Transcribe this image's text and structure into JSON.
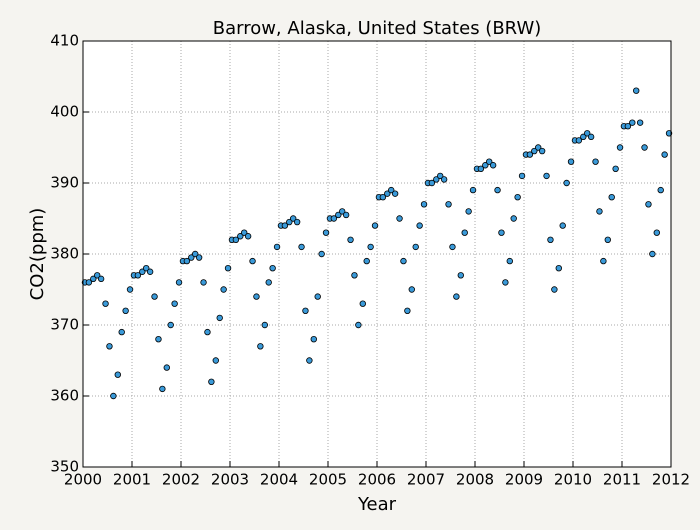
{
  "chart_data": {
    "type": "scatter",
    "title": "Barrow, Alaska, United States (BRW)",
    "x_label": "Year",
    "y_label": "CO2(ppm)",
    "xlim": [
      2000,
      2012
    ],
    "xticks": [
      2000,
      2001,
      2002,
      2003,
      2004,
      2005,
      2006,
      2007,
      2008,
      2009,
      2010,
      2011,
      2012
    ],
    "ylim": [
      350,
      410
    ],
    "yticks": [
      350,
      360,
      370,
      380,
      390,
      400,
      410
    ],
    "grid": true,
    "color": "#3a9ad9",
    "x": [
      2000.04,
      2000.12,
      2000.21,
      2000.29,
      2000.37,
      2000.46,
      2000.54,
      2000.62,
      2000.71,
      2000.79,
      2000.87,
      2000.96,
      2001.04,
      2001.12,
      2001.21,
      2001.29,
      2001.37,
      2001.46,
      2001.54,
      2001.62,
      2001.71,
      2001.79,
      2001.87,
      2001.96,
      2002.04,
      2002.12,
      2002.21,
      2002.29,
      2002.37,
      2002.46,
      2002.54,
      2002.62,
      2002.71,
      2002.79,
      2002.87,
      2002.96,
      2003.04,
      2003.12,
      2003.21,
      2003.29,
      2003.37,
      2003.46,
      2003.54,
      2003.62,
      2003.71,
      2003.79,
      2003.87,
      2003.96,
      2004.04,
      2004.12,
      2004.21,
      2004.29,
      2004.37,
      2004.46,
      2004.54,
      2004.62,
      2004.71,
      2004.79,
      2004.87,
      2004.96,
      2005.04,
      2005.12,
      2005.21,
      2005.29,
      2005.37,
      2005.46,
      2005.54,
      2005.62,
      2005.71,
      2005.79,
      2005.87,
      2005.96,
      2006.04,
      2006.12,
      2006.21,
      2006.29,
      2006.37,
      2006.46,
      2006.54,
      2006.62,
      2006.71,
      2006.79,
      2006.87,
      2006.96,
      2007.04,
      2007.12,
      2007.21,
      2007.29,
      2007.37,
      2007.46,
      2007.54,
      2007.62,
      2007.71,
      2007.79,
      2007.87,
      2007.96,
      2008.04,
      2008.12,
      2008.21,
      2008.29,
      2008.37,
      2008.46,
      2008.54,
      2008.62,
      2008.71,
      2008.79,
      2008.87,
      2008.96,
      2009.04,
      2009.12,
      2009.21,
      2009.29,
      2009.37,
      2009.46,
      2009.54,
      2009.62,
      2009.71,
      2009.79,
      2009.87,
      2009.96,
      2010.04,
      2010.12,
      2010.21,
      2010.29,
      2010.37,
      2010.46,
      2010.54,
      2010.62,
      2010.71,
      2010.79,
      2010.87,
      2010.96,
      2011.04,
      2011.12,
      2011.21,
      2011.29,
      2011.37,
      2011.46,
      2011.54,
      2011.62,
      2011.71,
      2011.79,
      2011.87,
      2011.96
    ],
    "values": [
      376,
      376,
      376.5,
      377,
      376.5,
      373,
      367,
      360,
      363,
      369,
      372,
      375,
      377,
      377,
      377.5,
      378,
      377.5,
      374,
      368,
      361,
      364,
      370,
      373,
      376,
      379,
      379,
      379.5,
      380,
      379.5,
      376,
      369,
      362,
      365,
      371,
      375,
      378,
      382,
      382,
      382.5,
      383,
      382.5,
      379,
      374,
      367,
      370,
      376,
      378,
      381,
      384,
      384,
      384.5,
      385,
      384.5,
      381,
      372,
      365,
      368,
      374,
      380,
      383,
      385,
      385,
      385.5,
      386,
      385.5,
      382,
      377,
      370,
      373,
      379,
      381,
      384,
      388,
      388,
      388.5,
      389,
      388.5,
      385,
      379,
      372,
      375,
      381,
      384,
      387,
      390,
      390,
      390.5,
      391,
      390.5,
      387,
      381,
      374,
      377,
      383,
      386,
      389,
      392,
      392,
      392.5,
      393,
      392.5,
      389,
      383,
      376,
      379,
      385,
      388,
      391,
      394,
      394,
      394.5,
      395,
      394.5,
      391,
      382,
      375,
      378,
      384,
      390,
      393,
      396,
      396,
      396.5,
      397,
      396.5,
      393,
      386,
      379,
      382,
      388,
      392,
      395,
      398,
      398,
      398.5,
      403,
      398.5,
      395,
      387,
      380,
      383,
      389,
      394,
      397
    ]
  }
}
